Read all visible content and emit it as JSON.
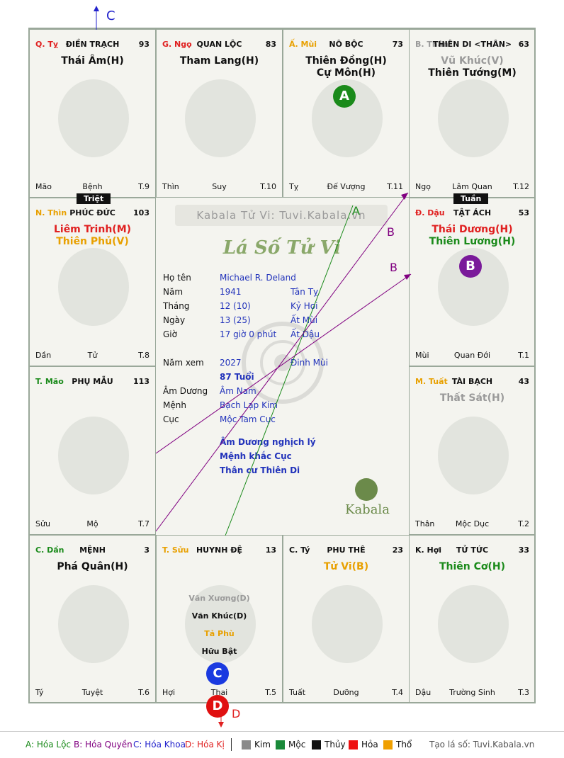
{
  "watermark": "Kabala Tử Vi: Tuvi.Kabala.vn",
  "chart_title": "Lá Số Tử Vi",
  "brand": "Kabala",
  "palaces": [
    {
      "can": "Q. Tỵ",
      "can_color": "#e02020",
      "name": "ĐIỀN TRẠCH",
      "num": "93",
      "stars": [
        {
          "t": "Thái Âm(H)",
          "c": "#111"
        }
      ],
      "minor": [],
      "footer": [
        "Mão",
        "Bệnh",
        "T.9"
      ]
    },
    {
      "can": "G. Ngọ",
      "can_color": "#e02020",
      "name": "QUAN LỘC",
      "num": "83",
      "stars": [
        {
          "t": "Tham Lang(H)",
          "c": "#111"
        }
      ],
      "minor": [],
      "footer": [
        "Thìn",
        "Suy",
        "T.10"
      ]
    },
    {
      "can": "Ấ. Mùi",
      "can_color": "#e8a000",
      "name": "NÔ BỘC",
      "num": "73",
      "stars": [
        {
          "t": "Thiên Đồng(H)",
          "c": "#111"
        },
        {
          "t": "Cự Môn(H)",
          "c": "#111"
        }
      ],
      "minor": [],
      "footer": [
        "Tỵ",
        "Đế Vượng",
        "T.11"
      ]
    },
    {
      "can": "B. Thân",
      "can_color": "#9a9a9a",
      "name": "THIÊN DI <THÂN>",
      "num": "63",
      "stars": [
        {
          "t": "Vũ Khúc(V)",
          "c": "#9a9a9a"
        },
        {
          "t": "Thiên Tướng(M)",
          "c": "#111"
        }
      ],
      "minor": [],
      "footer": [
        "Ngọ",
        "Lâm Quan",
        "T.12"
      ]
    },
    {
      "can": "N. Thìn",
      "can_color": "#e8a000",
      "name": "PHÚC ĐỨC",
      "num": "103",
      "stars": [
        {
          "t": "Liêm Trinh(M)",
          "c": "#e02020"
        },
        {
          "t": "Thiên Phủ(V)",
          "c": "#e8a000"
        }
      ],
      "minor": [],
      "footer": [
        "Dần",
        "Tử",
        "T.8"
      ]
    },
    {
      "can": "Đ. Dậu",
      "can_color": "#e02020",
      "name": "TẬT ÁCH",
      "num": "53",
      "stars": [
        {
          "t": "Thái Dương(H)",
          "c": "#e02020"
        },
        {
          "t": "Thiên Lương(H)",
          "c": "#1a8a1a"
        }
      ],
      "minor": [],
      "footer": [
        "Mùi",
        "Quan Đới",
        "T.1"
      ]
    },
    {
      "can": "T. Mão",
      "can_color": "#1a8a1a",
      "name": "PHỤ MẪU",
      "num": "113",
      "stars": [],
      "minor": [],
      "footer": [
        "Sửu",
        "Mộ",
        "T.7"
      ]
    },
    {
      "can": "M. Tuất",
      "can_color": "#e8a000",
      "name": "TÀI BẠCH",
      "num": "43",
      "stars": [
        {
          "t": "Thất Sát(H)",
          "c": "#9a9a9a"
        }
      ],
      "minor": [],
      "footer": [
        "Thân",
        "Mộc Dục",
        "T.2"
      ]
    },
    {
      "can": "C. Dần",
      "can_color": "#1a8a1a",
      "name": "MỆNH",
      "num": "3",
      "stars": [
        {
          "t": "Phá Quân(H)",
          "c": "#111"
        }
      ],
      "minor": [],
      "footer": [
        "Tý",
        "Tuyệt",
        "T.6"
      ]
    },
    {
      "can": "T. Sửu",
      "can_color": "#e8a000",
      "name": "HUYNH ĐỆ",
      "num": "13",
      "stars": [],
      "minor": [
        {
          "t": "Văn Xương(D)",
          "c": "#9a9a9a"
        },
        {
          "t": "Văn Khúc(D)",
          "c": "#111"
        },
        {
          "t": "Tả Phù",
          "c": "#e8a000"
        },
        {
          "t": "Hữu Bật",
          "c": "#111"
        }
      ],
      "footer": [
        "Hợi",
        "Thai",
        "T.5"
      ]
    },
    {
      "can": "C. Tý",
      "can_color": "#111",
      "name": "PHU THÊ",
      "num": "23",
      "stars": [
        {
          "t": "Tử Vi(B)",
          "c": "#e8a000"
        }
      ],
      "minor": [],
      "footer": [
        "Tuất",
        "Dưỡng",
        "T.4"
      ]
    },
    {
      "can": "K. Hợi",
      "can_color": "#111",
      "name": "TỬ TỨC",
      "num": "33",
      "stars": [
        {
          "t": "Thiên Cơ(H)",
          "c": "#1a8a1a"
        }
      ],
      "minor": [],
      "footer": [
        "Dậu",
        "Trường Sinh",
        "T.3"
      ]
    }
  ],
  "tags": {
    "triet": "Triệt",
    "tuan": "Tuần"
  },
  "info": [
    {
      "label": "Họ tên",
      "v1": "Michael R. Deland",
      "v2": ""
    },
    {
      "label": "Năm",
      "v1": "1941",
      "v2": "Tân Tỵ"
    },
    {
      "label": "Tháng",
      "v1": "12  (10)",
      "v2": "Kỷ Hợi"
    },
    {
      "label": "Ngày",
      "v1": "13  (25)",
      "v2": "Ất Mùi"
    },
    {
      "label": "Giờ",
      "v1": "17 giờ 0 phút",
      "v2": "Ất Dậu"
    },
    {
      "label": "Năm xem",
      "v1": "2027",
      "v2": "Đinh Mùi"
    },
    {
      "label": "",
      "v1": "87 Tuổi",
      "v2": ""
    },
    {
      "label": "Âm Dương",
      "v1": "Âm Nam",
      "v2": ""
    },
    {
      "label": "Mệnh",
      "v1": "Bạch Lạp Kim",
      "v2": ""
    },
    {
      "label": "Cục",
      "v1": "Mộc Tam Cục",
      "v2": ""
    }
  ],
  "notes": [
    "Âm Dương nghịch lý",
    "Mệnh khắc Cục",
    "Thân cư Thiên Di"
  ],
  "markers": {
    "A": "A",
    "B": "B",
    "C": "C",
    "D": "D"
  },
  "legend": {
    "a": "A: Hóa Lộc",
    "b": "B: Hóa Quyền",
    "c": "C: Hóa Khoa",
    "d": "D: Hóa Kị",
    "kim": "Kim",
    "moc": "Mộc",
    "thuy": "Thủy",
    "hoa": "Hỏa",
    "tho": "Thổ",
    "site": "Tạo lá số: Tuvi.Kabala.vn"
  },
  "colors": {
    "kim": "#8a8a8a",
    "moc": "#1a8a3a",
    "thuy": "#111111",
    "hoa": "#ee1111",
    "tho": "#f0a000"
  }
}
